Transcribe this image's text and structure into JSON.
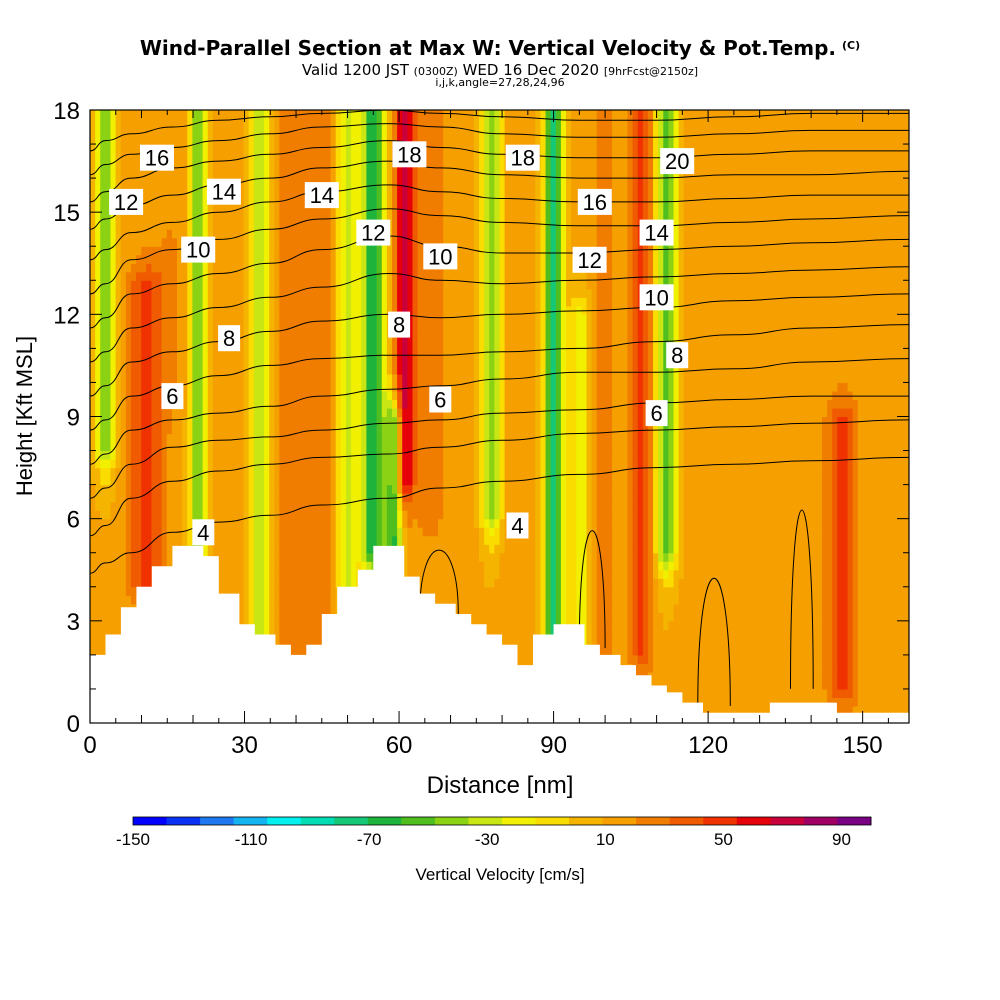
{
  "title": "Wind-Parallel Section at Max W: Vertical Velocity & Pot.Temp.",
  "copyright_mark": "(C)",
  "subtitle": {
    "valid_main": "Valid 1200 JST",
    "valid_utc": "(0300Z)",
    "valid_date": "WED 16 Dec 2020",
    "forecast": "[9hrFcst@2150z]"
  },
  "subtitle2": "i,j,k,angle=27,28,24,96",
  "colors": {
    "background": "#ffffff",
    "axis": "#000000",
    "contour": "#000000",
    "terrain": "#ffffff",
    "colorbar": [
      "#0000ff",
      "#0a32f5",
      "#1e78f0",
      "#14b4f0",
      "#00f0f0",
      "#00dcb4",
      "#14c878",
      "#1eb43c",
      "#50be1e",
      "#8cd214",
      "#c8e614",
      "#f0f000",
      "#fadc00",
      "#f5b400",
      "#f5a000",
      "#f07d00",
      "#f05a00",
      "#f03200",
      "#e6000a",
      "#c8003c",
      "#a00064",
      "#780082"
    ]
  },
  "chart_data": {
    "type": "contour-section",
    "xlabel": "Distance [nm]",
    "ylabel": "Height [Kft MSL]",
    "xlim": [
      0,
      159
    ],
    "ylim": [
      0,
      18
    ],
    "x_ticks": [
      0,
      30,
      60,
      90,
      120,
      150
    ],
    "y_ticks": [
      0,
      3,
      6,
      9,
      12,
      15,
      18
    ],
    "fill_variable": "Vertical Velocity [cm/s]",
    "colorbar_ticks": [
      -150,
      -110,
      -70,
      -30,
      10,
      50,
      90
    ],
    "colorbar_range": [
      -150,
      100
    ],
    "contour_variable": "Potential temperature",
    "contour_labels": [
      {
        "text": "16",
        "x": 13,
        "y": 16.6
      },
      {
        "text": "12",
        "x": 7,
        "y": 15.3
      },
      {
        "text": "14",
        "x": 26,
        "y": 15.6
      },
      {
        "text": "14",
        "x": 45,
        "y": 15.5
      },
      {
        "text": "10",
        "x": 21,
        "y": 13.9
      },
      {
        "text": "18",
        "x": 62,
        "y": 16.7
      },
      {
        "text": "18",
        "x": 84,
        "y": 16.6
      },
      {
        "text": "20",
        "x": 114,
        "y": 16.5
      },
      {
        "text": "16",
        "x": 98,
        "y": 15.3
      },
      {
        "text": "14",
        "x": 110,
        "y": 14.4
      },
      {
        "text": "12",
        "x": 55,
        "y": 14.4
      },
      {
        "text": "10",
        "x": 68,
        "y": 13.7
      },
      {
        "text": "12",
        "x": 97,
        "y": 13.6
      },
      {
        "text": "10",
        "x": 110,
        "y": 12.5
      },
      {
        "text": "8",
        "x": 27,
        "y": 11.3
      },
      {
        "text": "8",
        "x": 60,
        "y": 11.7
      },
      {
        "text": "8",
        "x": 114,
        "y": 10.8
      },
      {
        "text": "6",
        "x": 16,
        "y": 9.6
      },
      {
        "text": "6",
        "x": 68,
        "y": 9.5
      },
      {
        "text": "6",
        "x": 110,
        "y": 9.1
      },
      {
        "text": "4",
        "x": 22,
        "y": 5.6
      },
      {
        "text": "4",
        "x": 83,
        "y": 5.8
      }
    ],
    "terrain": [
      [
        0,
        2
      ],
      [
        3,
        2
      ],
      [
        3,
        2.6
      ],
      [
        6,
        2.6
      ],
      [
        6,
        3.4
      ],
      [
        9,
        3.4
      ],
      [
        9,
        4
      ],
      [
        12,
        4
      ],
      [
        12,
        4.6
      ],
      [
        16,
        4.6
      ],
      [
        16,
        5.2
      ],
      [
        22,
        5.2
      ],
      [
        22,
        4.9
      ],
      [
        25,
        4.9
      ],
      [
        25,
        3.8
      ],
      [
        29,
        3.8
      ],
      [
        29,
        2.9
      ],
      [
        32,
        2.9
      ],
      [
        32,
        2.6
      ],
      [
        36,
        2.6
      ],
      [
        36,
        2.3
      ],
      [
        39,
        2.3
      ],
      [
        39,
        2
      ],
      [
        42,
        2
      ],
      [
        42,
        2.3
      ],
      [
        45,
        2.3
      ],
      [
        45,
        3.2
      ],
      [
        48,
        3.2
      ],
      [
        48,
        4
      ],
      [
        52,
        4
      ],
      [
        52,
        4.5
      ],
      [
        55,
        4.5
      ],
      [
        55,
        5.2
      ],
      [
        61,
        5.2
      ],
      [
        61,
        4.3
      ],
      [
        64,
        4.3
      ],
      [
        64,
        3.8
      ],
      [
        67,
        3.8
      ],
      [
        67,
        3.5
      ],
      [
        71,
        3.5
      ],
      [
        71,
        3.2
      ],
      [
        74,
        3.2
      ],
      [
        74,
        2.9
      ],
      [
        77,
        2.9
      ],
      [
        77,
        2.6
      ],
      [
        80,
        2.6
      ],
      [
        80,
        2.3
      ],
      [
        83,
        2.3
      ],
      [
        83,
        1.7
      ],
      [
        86,
        1.7
      ],
      [
        86,
        2.6
      ],
      [
        90,
        2.6
      ],
      [
        90,
        2.9
      ],
      [
        96,
        2.9
      ],
      [
        96,
        2.3
      ],
      [
        99,
        2.3
      ],
      [
        99,
        2
      ],
      [
        103,
        2
      ],
      [
        103,
        1.7
      ],
      [
        106,
        1.7
      ],
      [
        106,
        1.4
      ],
      [
        109,
        1.4
      ],
      [
        109,
        1.1
      ],
      [
        112,
        1.1
      ],
      [
        112,
        0.9
      ],
      [
        115,
        0.9
      ],
      [
        115,
        0.6
      ],
      [
        119,
        0.6
      ],
      [
        119,
        0.3
      ],
      [
        132,
        0.3
      ],
      [
        132,
        0.6
      ],
      [
        145,
        0.6
      ],
      [
        145,
        0.3
      ],
      [
        159,
        0.3
      ],
      [
        159,
        0
      ],
      [
        0,
        0
      ]
    ],
    "theta_levels": [
      [
        3,
        8,
        16,
        25,
        35,
        45,
        58,
        68,
        80,
        95,
        110,
        125,
        140,
        159
      ],
      [
        4.7,
        5.0,
        5.6,
        5.9,
        6.1,
        6.4,
        6.6,
        6.9,
        7.1,
        7.3,
        7.5,
        7.6,
        7.7,
        7.8
      ],
      [
        5.8,
        6.6,
        7.1,
        7.4,
        7.6,
        7.8,
        7.9,
        8.1,
        8.3,
        8.5,
        8.6,
        8.7,
        8.8,
        8.9
      ],
      [
        6.9,
        7.6,
        8.1,
        8.3,
        8.4,
        8.6,
        8.8,
        8.9,
        9.1,
        9.2,
        9.4,
        9.5,
        9.6,
        9.6
      ],
      [
        7.9,
        8.6,
        8.9,
        9.1,
        9.3,
        9.6,
        9.8,
        9.9,
        10.1,
        10.3,
        10.3,
        10.4,
        10.6,
        10.7
      ],
      [
        8.9,
        9.6,
        9.9,
        10.2,
        10.5,
        10.7,
        10.8,
        10.8,
        10.9,
        11.0,
        11.2,
        11.4,
        11.6,
        11.7
      ],
      [
        9.9,
        10.6,
        10.9,
        11.2,
        11.5,
        11.8,
        12.0,
        11.9,
        12.0,
        12.1,
        12.2,
        12.4,
        12.5,
        12.6
      ],
      [
        10.9,
        11.6,
        11.9,
        12.2,
        12.5,
        12.8,
        13.2,
        13.0,
        12.9,
        13.0,
        13.1,
        13.2,
        13.3,
        13.4
      ],
      [
        11.9,
        12.6,
        12.9,
        13.2,
        13.5,
        13.9,
        14.3,
        14.0,
        13.8,
        13.8,
        13.9,
        14.0,
        14.1,
        14.2
      ],
      [
        12.9,
        13.6,
        13.9,
        14.2,
        14.5,
        14.8,
        15.1,
        14.9,
        14.7,
        14.6,
        14.6,
        14.7,
        14.8,
        14.9
      ],
      [
        13.9,
        14.4,
        14.7,
        15.0,
        15.3,
        15.6,
        15.8,
        15.6,
        15.4,
        15.3,
        15.3,
        15.4,
        15.5,
        15.5
      ],
      [
        14.8,
        15.2,
        15.5,
        15.8,
        16.0,
        16.3,
        16.5,
        16.3,
        16.1,
        16.0,
        16.0,
        16.1,
        16.1,
        16.2
      ],
      [
        15.6,
        16.0,
        16.3,
        16.5,
        16.7,
        16.9,
        17.1,
        16.9,
        16.7,
        16.6,
        16.6,
        16.7,
        16.8,
        16.8
      ],
      [
        16.4,
        16.7,
        16.9,
        17.1,
        17.3,
        17.5,
        17.6,
        17.5,
        17.3,
        17.2,
        17.2,
        17.3,
        17.4,
        17.4
      ],
      [
        17.1,
        17.3,
        17.5,
        17.7,
        17.8,
        17.9,
        18.0,
        17.9,
        17.8,
        17.7,
        17.7,
        17.8,
        17.9,
        17.9
      ]
    ],
    "w_features": [
      {
        "x": 3,
        "w": -45,
        "width": 2.0,
        "z0": 8,
        "z1": 18
      },
      {
        "x": 11,
        "w": 45,
        "width": 3.6,
        "z0": 4,
        "z1": 13
      },
      {
        "x": 16,
        "w": 20,
        "width": 3,
        "z0": 10,
        "z1": 18
      },
      {
        "x": 21,
        "w": -50,
        "width": 1.6,
        "z0": 4,
        "z1": 18
      },
      {
        "x": 26,
        "w": 10,
        "width": 2.5,
        "z0": 4,
        "z1": 18
      },
      {
        "x": 33,
        "w": -30,
        "width": 2,
        "z0": 2,
        "z1": 18
      },
      {
        "x": 39,
        "w": 30,
        "width": 2.2,
        "z0": 2,
        "z1": 18
      },
      {
        "x": 44,
        "w": 30,
        "width": 3,
        "z0": 2,
        "z1": 18
      },
      {
        "x": 50,
        "w": -30,
        "width": 2,
        "z0": 4,
        "z1": 18
      },
      {
        "x": 55,
        "w": -70,
        "width": 2.2,
        "z0": 5,
        "z1": 18
      },
      {
        "x": 61,
        "w": 75,
        "width": 1.8,
        "z0": 7,
        "z1": 18
      },
      {
        "x": 59,
        "w": -60,
        "width": 1.6,
        "z0": 4,
        "z1": 9
      },
      {
        "x": 66,
        "w": 30,
        "width": 2.5,
        "z0": 6,
        "z1": 18
      },
      {
        "x": 72,
        "w": 10,
        "width": 2.5,
        "z0": 3,
        "z1": 18
      },
      {
        "x": 78,
        "w": -45,
        "width": 1.8,
        "z0": 6,
        "z1": 18
      },
      {
        "x": 82,
        "w": 15,
        "width": 2.5,
        "z0": 1.5,
        "z1": 18
      },
      {
        "x": 90,
        "w": -75,
        "width": 1.8,
        "z0": 2,
        "z1": 18
      },
      {
        "x": 95,
        "w": -20,
        "width": 2,
        "z0": 2,
        "z1": 12
      },
      {
        "x": 100,
        "w": 25,
        "width": 2.2,
        "z0": 2,
        "z1": 18
      },
      {
        "x": 107,
        "w": 45,
        "width": 2,
        "z0": 2,
        "z1": 18
      },
      {
        "x": 112,
        "w": -55,
        "width": 2,
        "z0": 5,
        "z1": 18
      },
      {
        "x": 118,
        "w": 20,
        "width": 2.2,
        "z0": 1,
        "z1": 18
      },
      {
        "x": 128,
        "w": 10,
        "width": 4,
        "z0": 0.5,
        "z1": 12
      },
      {
        "x": 146,
        "w": 45,
        "width": 3,
        "z0": 1,
        "z1": 9
      },
      {
        "x": 156,
        "w": 20,
        "width": 2,
        "z0": 1,
        "z1": 6
      }
    ]
  },
  "colorbar": {
    "ticks": [
      "-150",
      "-110",
      "-70",
      "-30",
      "10",
      "50",
      "90"
    ],
    "label": "Vertical Velocity [cm/s]"
  }
}
